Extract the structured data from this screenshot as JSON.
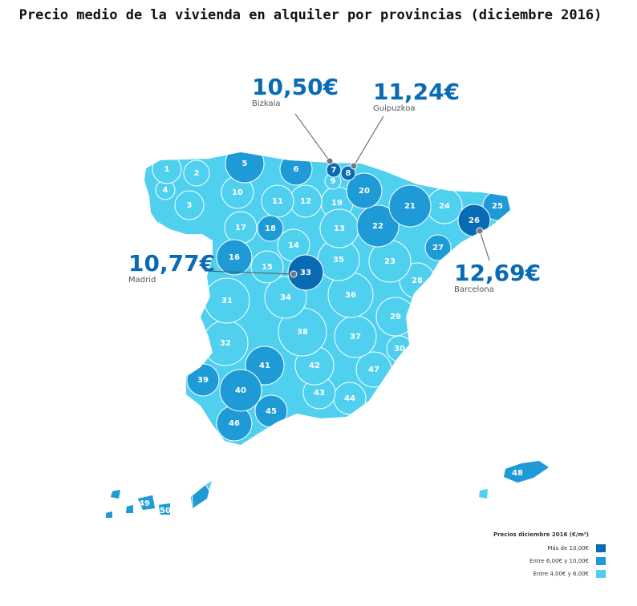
{
  "header": {
    "title": "Precio medio de la vivienda en alquiler por provincias (diciembre 2016)"
  },
  "callouts": [
    {
      "price": "10,50€",
      "name": "Bizkaia"
    },
    {
      "price": "11,24€",
      "name": "Guipuzkoa"
    },
    {
      "price": "10,77€",
      "name": "Madrid"
    },
    {
      "price": "12,69€",
      "name": "Barcelona"
    }
  ],
  "legend": {
    "title": "Precios diciembre 2016 (€/m²)",
    "items": [
      {
        "label": "Más de 10,00€",
        "color": "#0a6bb5"
      },
      {
        "label": "Entre 6,00€ y 10,00€",
        "color": "#1e9bd7"
      },
      {
        "label": "Entre 4,00€ y 6,00€",
        "color": "#4fd0ef"
      }
    ]
  },
  "provinces": [
    {
      "label": "1",
      "tier": 2
    },
    {
      "label": "2",
      "tier": 2
    },
    {
      "label": "3",
      "tier": 2
    },
    {
      "label": "4",
      "tier": 2
    },
    {
      "label": "5",
      "tier": 1
    },
    {
      "label": "6",
      "tier": 1
    },
    {
      "label": "7",
      "tier": 0
    },
    {
      "label": "8",
      "tier": 0
    },
    {
      "label": "9",
      "tier": 2
    },
    {
      "label": "10",
      "tier": 2
    },
    {
      "label": "11",
      "tier": 2
    },
    {
      "label": "12",
      "tier": 2
    },
    {
      "label": "13",
      "tier": 2
    },
    {
      "label": "14",
      "tier": 2
    },
    {
      "label": "15",
      "tier": 2
    },
    {
      "label": "16",
      "tier": 1
    },
    {
      "label": "17",
      "tier": 2
    },
    {
      "label": "18",
      "tier": 1
    },
    {
      "label": "19",
      "tier": 2
    },
    {
      "label": "20",
      "tier": 1
    },
    {
      "label": "21",
      "tier": 1
    },
    {
      "label": "22",
      "tier": 1
    },
    {
      "label": "23",
      "tier": 2
    },
    {
      "label": "24",
      "tier": 2
    },
    {
      "label": "25",
      "tier": 1
    },
    {
      "label": "26",
      "tier": 0
    },
    {
      "label": "27",
      "tier": 1
    },
    {
      "label": "28",
      "tier": 2
    },
    {
      "label": "29",
      "tier": 2
    },
    {
      "label": "30",
      "tier": 2
    },
    {
      "label": "31",
      "tier": 2
    },
    {
      "label": "32",
      "tier": 2
    },
    {
      "label": "33",
      "tier": 0
    },
    {
      "label": "34",
      "tier": 2
    },
    {
      "label": "35",
      "tier": 2
    },
    {
      "label": "36",
      "tier": 2
    },
    {
      "label": "37",
      "tier": 2
    },
    {
      "label": "38",
      "tier": 2
    },
    {
      "label": "39",
      "tier": 1
    },
    {
      "label": "40",
      "tier": 1
    },
    {
      "label": "41",
      "tier": 1
    },
    {
      "label": "42",
      "tier": 2
    },
    {
      "label": "43",
      "tier": 2
    },
    {
      "label": "44",
      "tier": 2
    },
    {
      "label": "45",
      "tier": 1
    },
    {
      "label": "46",
      "tier": 1
    },
    {
      "label": "47",
      "tier": 2
    },
    {
      "label": "48",
      "tier": 1
    },
    {
      "label": "49",
      "tier": 1
    },
    {
      "label": "50",
      "tier": 1
    }
  ]
}
